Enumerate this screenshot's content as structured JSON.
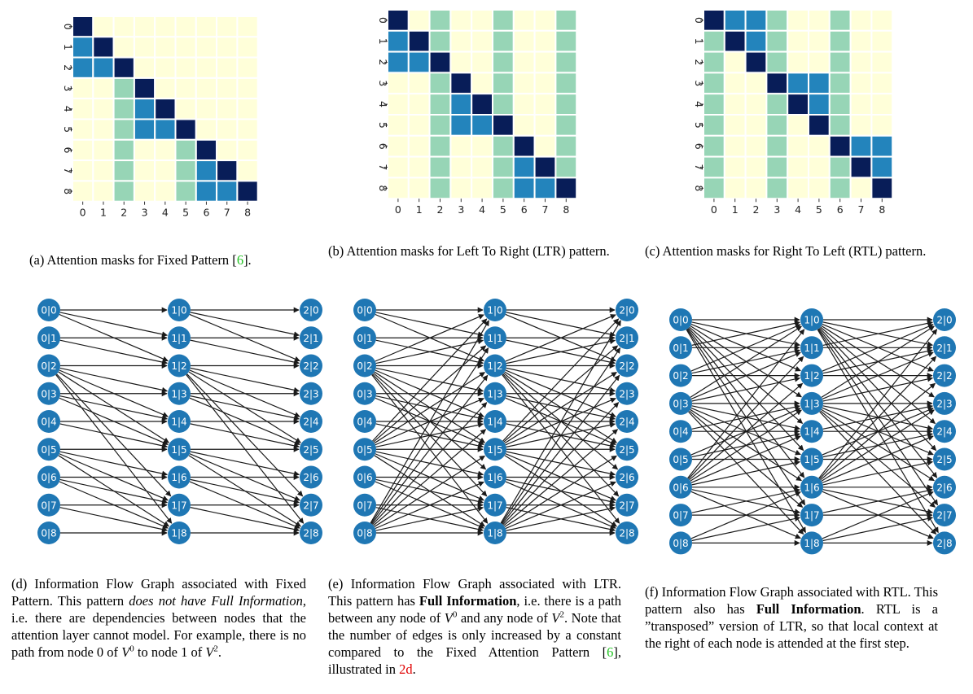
{
  "heatmaps": [
    {
      "id": "fixed",
      "ticks": [
        "0",
        "1",
        "2",
        "3",
        "4",
        "5",
        "6",
        "7",
        "8"
      ],
      "mask": [
        [
          3,
          0,
          0,
          0,
          0,
          0,
          0,
          0,
          0
        ],
        [
          2,
          3,
          0,
          0,
          0,
          0,
          0,
          0,
          0
        ],
        [
          2,
          2,
          3,
          0,
          0,
          0,
          0,
          0,
          0
        ],
        [
          0,
          0,
          1,
          3,
          0,
          0,
          0,
          0,
          0
        ],
        [
          0,
          0,
          1,
          2,
          3,
          0,
          0,
          0,
          0
        ],
        [
          0,
          0,
          1,
          2,
          2,
          3,
          0,
          0,
          0
        ],
        [
          0,
          0,
          1,
          0,
          0,
          1,
          3,
          0,
          0
        ],
        [
          0,
          0,
          1,
          0,
          0,
          1,
          2,
          3,
          0
        ],
        [
          0,
          0,
          1,
          0,
          0,
          1,
          2,
          2,
          3
        ]
      ]
    },
    {
      "id": "ltr",
      "ticks": [
        "0",
        "1",
        "2",
        "3",
        "4",
        "5",
        "6",
        "7",
        "8"
      ],
      "mask": [
        [
          3,
          0,
          1,
          0,
          0,
          1,
          0,
          0,
          1
        ],
        [
          2,
          3,
          1,
          0,
          0,
          1,
          0,
          0,
          1
        ],
        [
          2,
          2,
          3,
          0,
          0,
          1,
          0,
          0,
          1
        ],
        [
          0,
          0,
          1,
          3,
          0,
          1,
          0,
          0,
          1
        ],
        [
          0,
          0,
          1,
          2,
          3,
          1,
          0,
          0,
          1
        ],
        [
          0,
          0,
          1,
          2,
          2,
          3,
          0,
          0,
          1
        ],
        [
          0,
          0,
          1,
          0,
          0,
          1,
          3,
          0,
          1
        ],
        [
          0,
          0,
          1,
          0,
          0,
          1,
          2,
          3,
          1
        ],
        [
          0,
          0,
          1,
          0,
          0,
          1,
          2,
          2,
          3
        ]
      ]
    },
    {
      "id": "rtl",
      "ticks": [
        "0",
        "1",
        "2",
        "3",
        "4",
        "5",
        "6",
        "7",
        "8"
      ],
      "mask": [
        [
          3,
          2,
          2,
          1,
          0,
          0,
          1,
          0,
          0
        ],
        [
          1,
          3,
          2,
          1,
          0,
          0,
          1,
          0,
          0
        ],
        [
          1,
          0,
          3,
          1,
          0,
          0,
          1,
          0,
          0
        ],
        [
          1,
          0,
          0,
          3,
          2,
          2,
          1,
          0,
          0
        ],
        [
          1,
          0,
          0,
          1,
          3,
          2,
          1,
          0,
          0
        ],
        [
          1,
          0,
          0,
          1,
          0,
          3,
          1,
          0,
          0
        ],
        [
          1,
          0,
          0,
          1,
          0,
          0,
          3,
          2,
          2
        ],
        [
          1,
          0,
          0,
          1,
          0,
          0,
          1,
          3,
          2
        ],
        [
          1,
          0,
          0,
          1,
          0,
          0,
          1,
          0,
          3
        ]
      ]
    }
  ],
  "colors": {
    "c0": "#ffffd9",
    "c1": "#97d5b6",
    "c2": "#2384bc",
    "c3": "#081d58",
    "node": "#1f77b4",
    "edge": "#1a1a1a"
  },
  "graphs": [
    {
      "id": "fixed",
      "col0": [
        "0|0",
        "0|1",
        "0|2",
        "0|3",
        "0|4",
        "0|5",
        "0|6",
        "0|7",
        "0|8"
      ],
      "col1": [
        "1|0",
        "1|1",
        "1|2",
        "1|3",
        "1|4",
        "1|5",
        "1|6",
        "1|7",
        "1|8"
      ],
      "col2": [
        "2|0",
        "2|1",
        "2|2",
        "2|3",
        "2|4",
        "2|5",
        "2|6",
        "2|7",
        "2|8"
      ],
      "edges01": [
        [
          0,
          0
        ],
        [
          0,
          1
        ],
        [
          1,
          1
        ],
        [
          0,
          2
        ],
        [
          1,
          2
        ],
        [
          2,
          2
        ],
        [
          3,
          3
        ],
        [
          2,
          3
        ],
        [
          3,
          4
        ],
        [
          4,
          4
        ],
        [
          2,
          4
        ],
        [
          3,
          5
        ],
        [
          4,
          5
        ],
        [
          5,
          5
        ],
        [
          2,
          5
        ],
        [
          6,
          6
        ],
        [
          5,
          6
        ],
        [
          6,
          7
        ],
        [
          7,
          7
        ],
        [
          5,
          7
        ],
        [
          2,
          7
        ],
        [
          6,
          8
        ],
        [
          7,
          8
        ],
        [
          8,
          8
        ],
        [
          5,
          8
        ],
        [
          2,
          8
        ]
      ],
      "edges12": [
        [
          0,
          0
        ],
        [
          0,
          1
        ],
        [
          1,
          1
        ],
        [
          0,
          2
        ],
        [
          1,
          2
        ],
        [
          2,
          2
        ],
        [
          3,
          3
        ],
        [
          2,
          3
        ],
        [
          3,
          4
        ],
        [
          4,
          4
        ],
        [
          2,
          4
        ],
        [
          3,
          5
        ],
        [
          4,
          5
        ],
        [
          5,
          5
        ],
        [
          2,
          5
        ],
        [
          6,
          6
        ],
        [
          5,
          6
        ],
        [
          6,
          7
        ],
        [
          7,
          7
        ],
        [
          5,
          7
        ],
        [
          2,
          7
        ],
        [
          6,
          8
        ],
        [
          7,
          8
        ],
        [
          8,
          8
        ],
        [
          5,
          8
        ],
        [
          2,
          8
        ]
      ]
    },
    {
      "id": "ltr",
      "col0": [
        "0|0",
        "0|1",
        "0|2",
        "0|3",
        "0|4",
        "0|5",
        "0|6",
        "0|7",
        "0|8"
      ],
      "col1": [
        "1|0",
        "1|1",
        "1|2",
        "1|3",
        "1|4",
        "1|5",
        "1|6",
        "1|7",
        "1|8"
      ],
      "col2": [
        "2|0",
        "2|1",
        "2|2",
        "2|3",
        "2|4",
        "2|5",
        "2|6",
        "2|7",
        "2|8"
      ]
    },
    {
      "id": "rtl",
      "col0": [
        "0|0",
        "0|1",
        "0|2",
        "0|3",
        "0|4",
        "0|5",
        "0|6",
        "0|7",
        "0|8"
      ],
      "col1": [
        "1|0",
        "1|1",
        "1|2",
        "1|3",
        "1|4",
        "1|5",
        "1|6",
        "1|7",
        "1|8"
      ],
      "col2": [
        "2|0",
        "2|1",
        "2|2",
        "2|3",
        "2|4",
        "2|5",
        "2|6",
        "2|7",
        "2|8"
      ]
    }
  ],
  "captions": {
    "a": {
      "label": "(a)",
      "text": "Attention masks for Fixed Pattern [",
      "cite": "6",
      "end": "]."
    },
    "b": {
      "label": "(b)",
      "text": "Attention masks for Left To Right (LTR) pattern."
    },
    "c": {
      "label": "(c)",
      "text": "Attention masks for Right To Left (RTL) pattern."
    },
    "d": {
      "label": "(d)",
      "t1": "Information Flow Graph associated with Fixed Pattern. This pattern ",
      "em": "does not have Full Information",
      "t2": ", i.e. there are dependencies between nodes that the attention layer cannot model. For example, there is no path from node 0 of ",
      "t3": " to node 1 of ",
      "t4": "."
    },
    "e": {
      "label": "(e)",
      "t1": "Information Flow Graph associated with LTR. This pattern has ",
      "bold": "Full Information",
      "t2": ", i.e. there is a path between any node of ",
      "t3": " and any node of ",
      "t4": ". Note that the number of edges is only increased by a constant compared to the Fixed Attention Pattern [",
      "cite": "6",
      "t5": "], illustrated in ",
      "ref": "2d",
      "t6": "."
    },
    "f": {
      "label": "(f)",
      "t1": "Information Flow Graph associated with RTL. This pattern also has ",
      "bold": "Full Information",
      "t2": ". RTL is a ”transposed” version of LTR, so that local context at the right of each node is attended at the first step."
    },
    "math": {
      "v": "V",
      "sup0": "0",
      "sup2": "2"
    }
  }
}
